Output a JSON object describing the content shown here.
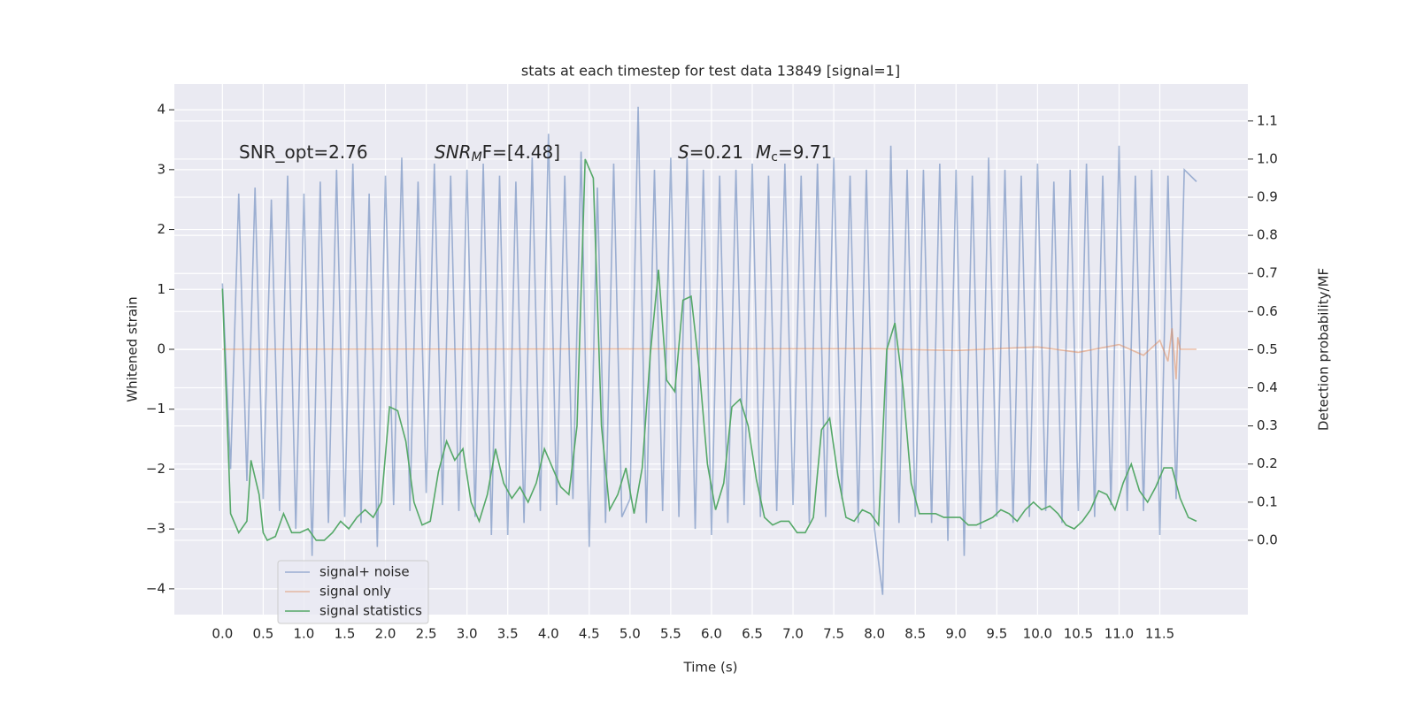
{
  "chart_data": {
    "type": "line",
    "title": "stats at each timestep for test data 13849 [signal=1]",
    "xlabel": "Time (s)",
    "ylabel": "Whitened strain",
    "y2label": "Detection probability/MF",
    "annotations": [
      [
        "SNR_opt=2.76"
      ],
      [
        "SNR",
        "M",
        "F=[4.48]"
      ],
      [
        "S",
        "=0.21",
        "M",
        "c",
        "=9.71"
      ]
    ],
    "xlim": [
      -0.59,
      12.58
    ],
    "ylim": [
      -4.43,
      4.43
    ],
    "y2lim": [
      -0.195,
      1.197
    ],
    "xticks": [
      {
        "value": 0,
        "label": "0.0"
      },
      0.5,
      {
        "value": 1,
        "label": "1.0"
      },
      1.5,
      {
        "value": 2,
        "label": "2.0"
      },
      2.5,
      {
        "value": 3,
        "label": "3.0"
      },
      3.5,
      {
        "value": 4,
        "label": "4.0"
      },
      4.5,
      {
        "value": 5,
        "label": "5.0"
      },
      5.5,
      {
        "value": 6,
        "label": "6.0"
      },
      6.5,
      {
        "value": 7,
        "label": "7.0"
      },
      7.5,
      {
        "value": 8,
        "label": "8.0"
      },
      8.5,
      {
        "value": 9,
        "label": "9.0"
      },
      9.5,
      {
        "value": 10,
        "label": "10.0"
      },
      10.5,
      {
        "value": 11,
        "label": "11.0"
      },
      11.5
    ],
    "yticks": [
      {
        "value": -4,
        "label": "−4"
      },
      {
        "value": -3,
        "label": "−3"
      },
      {
        "value": -2,
        "label": "−2"
      },
      {
        "value": -1,
        "label": "−1"
      },
      0,
      1,
      2,
      3,
      4
    ],
    "y2ticks": [
      {
        "value": 0,
        "label": "0.0"
      },
      0.1,
      0.2,
      0.3,
      0.4,
      0.5,
      0.6,
      0.7,
      0.8,
      0.9,
      {
        "value": 1,
        "label": "1.0"
      },
      1.1
    ],
    "grid": true,
    "legend": "lower left",
    "series": [
      {
        "name": "signal+ noise",
        "color": "#4c72b0",
        "x": [
          0.0,
          0.1,
          0.2,
          0.3,
          0.4,
          0.5,
          0.6,
          0.7,
          0.8,
          0.9,
          1.0,
          1.1,
          1.2,
          1.3,
          1.4,
          1.5,
          1.6,
          1.7,
          1.8,
          1.9,
          2.0,
          2.1,
          2.2,
          2.3,
          2.4,
          2.5,
          2.6,
          2.7,
          2.8,
          2.9,
          3.0,
          3.1,
          3.2,
          3.3,
          3.4,
          3.5,
          3.6,
          3.7,
          3.8,
          3.9,
          4.0,
          4.1,
          4.2,
          4.3,
          4.4,
          4.5,
          4.6,
          4.7,
          4.8,
          4.9,
          5.0,
          5.1,
          5.2,
          5.3,
          5.4,
          5.5,
          5.6,
          5.7,
          5.8,
          5.9,
          6.0,
          6.1,
          6.2,
          6.3,
          6.4,
          6.5,
          6.6,
          6.7,
          6.8,
          6.9,
          7.0,
          7.1,
          7.2,
          7.3,
          7.4,
          7.5,
          7.6,
          7.7,
          7.8,
          7.9,
          8.0,
          8.1,
          8.2,
          8.3,
          8.4,
          8.5,
          8.6,
          8.7,
          8.8,
          8.9,
          9.0,
          9.1,
          9.2,
          9.3,
          9.4,
          9.5,
          9.6,
          9.7,
          9.8,
          9.9,
          10.0,
          10.1,
          10.2,
          10.3,
          10.4,
          10.5,
          10.6,
          10.7,
          10.8,
          10.9,
          11.0,
          11.1,
          11.2,
          11.3,
          11.4,
          11.5,
          11.6,
          11.7,
          11.8,
          11.95
        ],
        "values": [
          1.1,
          -2.0,
          2.6,
          -2.2,
          2.7,
          -2.5,
          2.5,
          -2.7,
          2.9,
          -3.0,
          2.6,
          -3.45,
          2.8,
          -2.9,
          3.0,
          -2.8,
          3.1,
          -2.9,
          2.6,
          -3.3,
          2.9,
          -2.6,
          3.2,
          -2.7,
          2.8,
          -2.4,
          3.1,
          -2.6,
          2.9,
          -2.7,
          3.0,
          -2.8,
          3.1,
          -3.1,
          2.9,
          -3.1,
          2.8,
          -2.9,
          3.2,
          -2.7,
          3.6,
          -2.6,
          2.9,
          -2.5,
          3.3,
          -3.3,
          2.7,
          -2.9,
          3.1,
          -2.8,
          -2.5,
          4.05,
          -2.9,
          3.0,
          -2.7,
          3.2,
          -2.8,
          3.2,
          -3.0,
          3.0,
          -3.1,
          2.9,
          -2.9,
          3.0,
          -2.6,
          3.1,
          -2.8,
          2.9,
          -2.7,
          3.1,
          -2.6,
          2.9,
          -2.9,
          3.1,
          -2.8,
          3.2,
          -2.5,
          2.9,
          -2.9,
          3.0,
          -3.0,
          -4.1,
          3.4,
          -2.9,
          3.0,
          -2.8,
          3.0,
          -2.9,
          3.1,
          -3.2,
          3.0,
          -3.45,
          2.9,
          -3.0,
          3.2,
          -2.8,
          3.0,
          -2.9,
          2.9,
          -2.8,
          3.1,
          -2.7,
          2.8,
          -2.9,
          3.0,
          -2.7,
          3.1,
          -2.8,
          2.9,
          -2.6,
          3.4,
          -2.7,
          2.9,
          -2.7,
          3.0,
          -3.1,
          2.9,
          -2.5,
          3.0,
          2.8
        ]
      },
      {
        "name": "signal only",
        "color": "#dd8452",
        "x": [
          0,
          8,
          9,
          10,
          10.5,
          11,
          11.3,
          11.5,
          11.6,
          11.65,
          11.7,
          11.72,
          11.75,
          11.95
        ],
        "values": [
          0,
          0.01,
          -0.02,
          0.04,
          -0.05,
          0.08,
          -0.1,
          0.15,
          -0.2,
          0.35,
          -0.5,
          0.2,
          0,
          0
        ]
      },
      {
        "name": "signal statistics",
        "color": "#55a868",
        "axis": "y2",
        "x": [
          0.0,
          0.1,
          0.2,
          0.3,
          0.35,
          0.45,
          0.5,
          0.55,
          0.65,
          0.75,
          0.85,
          0.95,
          1.05,
          1.15,
          1.25,
          1.35,
          1.45,
          1.55,
          1.65,
          1.75,
          1.85,
          1.95,
          2.05,
          2.15,
          2.25,
          2.35,
          2.45,
          2.55,
          2.65,
          2.75,
          2.85,
          2.95,
          3.05,
          3.15,
          3.25,
          3.35,
          3.45,
          3.55,
          3.65,
          3.75,
          3.85,
          3.95,
          4.05,
          4.15,
          4.25,
          4.35,
          4.45,
          4.55,
          4.65,
          4.75,
          4.85,
          4.95,
          5.05,
          5.15,
          5.25,
          5.35,
          5.45,
          5.55,
          5.65,
          5.75,
          5.85,
          5.95,
          6.05,
          6.15,
          6.25,
          6.35,
          6.45,
          6.55,
          6.65,
          6.75,
          6.85,
          6.95,
          7.05,
          7.15,
          7.25,
          7.35,
          7.45,
          7.55,
          7.65,
          7.75,
          7.85,
          7.95,
          8.05,
          8.15,
          8.25,
          8.35,
          8.45,
          8.55,
          8.65,
          8.75,
          8.85,
          8.95,
          9.05,
          9.15,
          9.25,
          9.35,
          9.45,
          9.55,
          9.65,
          9.75,
          9.85,
          9.95,
          10.05,
          10.15,
          10.25,
          10.35,
          10.45,
          10.55,
          10.65,
          10.75,
          10.85,
          10.95,
          11.05,
          11.15,
          11.25,
          11.35,
          11.45,
          11.55,
          11.65,
          11.75,
          11.85,
          11.95
        ],
        "values": [
          0.66,
          0.07,
          0.02,
          0.05,
          0.21,
          0.12,
          0.02,
          0.0,
          0.01,
          0.07,
          0.02,
          0.02,
          0.03,
          0.0,
          0.0,
          0.02,
          0.05,
          0.03,
          0.06,
          0.08,
          0.06,
          0.1,
          0.35,
          0.34,
          0.26,
          0.1,
          0.04,
          0.05,
          0.18,
          0.26,
          0.21,
          0.24,
          0.1,
          0.05,
          0.12,
          0.24,
          0.15,
          0.11,
          0.14,
          0.1,
          0.15,
          0.24,
          0.19,
          0.14,
          0.12,
          0.3,
          1.0,
          0.95,
          0.3,
          0.08,
          0.12,
          0.19,
          0.07,
          0.19,
          0.49,
          0.71,
          0.42,
          0.39,
          0.63,
          0.64,
          0.45,
          0.2,
          0.08,
          0.15,
          0.35,
          0.37,
          0.3,
          0.16,
          0.06,
          0.04,
          0.05,
          0.05,
          0.02,
          0.02,
          0.06,
          0.29,
          0.32,
          0.17,
          0.06,
          0.05,
          0.08,
          0.07,
          0.04,
          0.5,
          0.57,
          0.4,
          0.15,
          0.07,
          0.07,
          0.07,
          0.06,
          0.06,
          0.06,
          0.04,
          0.04,
          0.05,
          0.06,
          0.08,
          0.07,
          0.05,
          0.08,
          0.1,
          0.08,
          0.09,
          0.07,
          0.04,
          0.03,
          0.05,
          0.08,
          0.13,
          0.12,
          0.08,
          0.15,
          0.2,
          0.13,
          0.1,
          0.14,
          0.19,
          0.19,
          0.11,
          0.06,
          0.05
        ]
      }
    ]
  }
}
